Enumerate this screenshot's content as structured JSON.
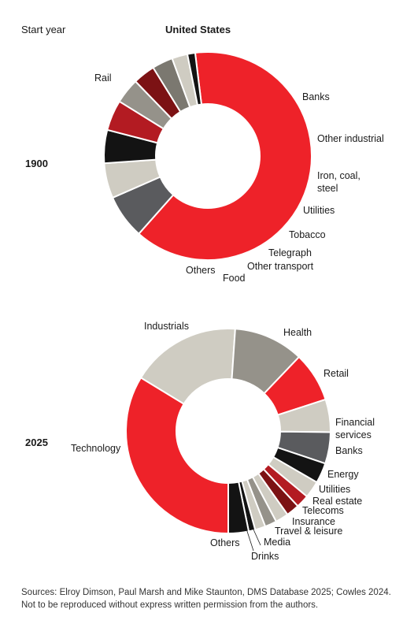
{
  "header": {
    "start_year_label": "Start year",
    "country": "United States"
  },
  "chart_data": [
    {
      "type": "pie",
      "year": "1900",
      "categories": [
        "Rail",
        "Banks",
        "Other industrial",
        "Iron, coal, steel",
        "Utilities",
        "Tobacco",
        "Telegraph",
        "Other transport",
        "Food",
        "Others"
      ],
      "values": [
        62.8,
        6.8,
        5.4,
        5.1,
        4.7,
        3.9,
        3.4,
        3.2,
        2.4,
        1.2
      ],
      "colors": [
        "#ee2229",
        "#5a5b5e",
        "#cfccc2",
        "#131313",
        "#b31b22",
        "#95928a",
        "#7c1214",
        "#7b7870",
        "#cfccc2",
        "#131313"
      ]
    },
    {
      "type": "pie",
      "year": "2025",
      "categories": [
        "Technology",
        "Industrials",
        "Health",
        "Retail",
        "Financial services",
        "Banks",
        "Energy",
        "Utilities",
        "Real estate",
        "Telecoms",
        "Insurance",
        "Travel & leisure",
        "Media",
        "Drinks",
        "Others"
      ],
      "values": [
        32.6,
        16.8,
        10.7,
        7.6,
        5.0,
        4.8,
        3.1,
        2.6,
        2.0,
        2.0,
        2.0,
        1.8,
        1.6,
        1.0,
        3.1
      ],
      "colors": [
        "#ee2229",
        "#cfccc2",
        "#95928a",
        "#ee2229",
        "#cfccc2",
        "#5a5b5e",
        "#131313",
        "#cfccc2",
        "#b31b22",
        "#7c1214",
        "#cfccc2",
        "#95928a",
        "#cfccc2",
        "#131313",
        "#131313"
      ]
    }
  ],
  "footer": {
    "sources": "Sources: Elroy Dimson, Paul Marsh and Mike Staunton, DMS Database 2025; Cowles 2024. Not to be reproduced without express written permission from the authors."
  }
}
